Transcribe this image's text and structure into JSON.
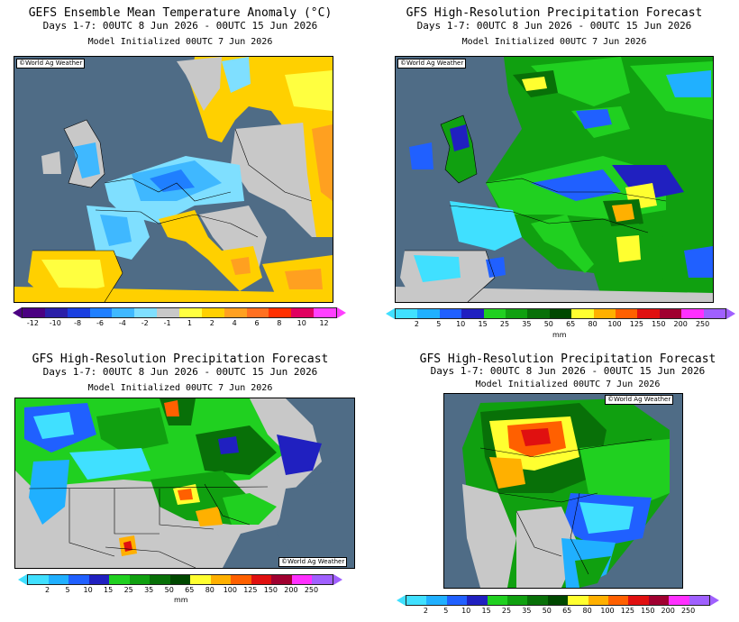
{
  "panels": [
    {
      "title": "GEFS Ensemble Mean Temperature Anomaly (°C)",
      "dates": "Days 1-7: 00UTC 8 Jun 2026 - 00UTC 15 Jun 2026",
      "init": "Model Initialized 00UTC 7 Jun 2026",
      "credit": "©World Ag Weather",
      "colorbar": {
        "colors": [
          "#4b0082",
          "#2a1fa8",
          "#1a3fe0",
          "#1f7fff",
          "#3fb8ff",
          "#7fdfff",
          "#c8c8c8",
          "#ffff40",
          "#ffd000",
          "#ffa020",
          "#ff7020",
          "#ff3000",
          "#e00060",
          "#ff40ff"
        ],
        "ticks": [
          "-12",
          "-10",
          "-8",
          "-6",
          "-4",
          "-2",
          "-1",
          "1",
          "2",
          "4",
          "6",
          "8",
          "10",
          "12"
        ],
        "unit": ""
      }
    },
    {
      "title": "GFS High-Resolution Precipitation Forecast",
      "dates": "Days 1-7: 00UTC 8 Jun 2026 - 00UTC 15 Jun 2026",
      "init": "Model Initialized 00UTC 7 Jun 2026",
      "credit": "©World Ag Weather",
      "colorbar": {
        "colors": [
          "#40e0ff",
          "#20b0ff",
          "#2060ff",
          "#2020c0",
          "#20d020",
          "#10a010",
          "#087008",
          "#004800",
          "#ffff30",
          "#ffb000",
          "#ff6000",
          "#e01010",
          "#a00030",
          "#ff30ff",
          "#a060ff"
        ],
        "ticks": [
          "2",
          "5",
          "10",
          "15",
          "25",
          "35",
          "50",
          "65",
          "80",
          "100",
          "125",
          "150",
          "200",
          "250"
        ],
        "unit": "mm"
      }
    },
    {
      "title": "GFS High-Resolution Precipitation Forecast",
      "dates": "Days 1-7: 00UTC 8 Jun 2026 - 00UTC 15 Jun 2026",
      "init": "Model Initialized 00UTC 7 Jun 2026",
      "credit": "©World Ag Weather",
      "colorbar": {
        "colors": [
          "#40e0ff",
          "#20b0ff",
          "#2060ff",
          "#2020c0",
          "#20d020",
          "#10a010",
          "#087008",
          "#004800",
          "#ffff30",
          "#ffb000",
          "#ff6000",
          "#e01010",
          "#a00030",
          "#ff30ff",
          "#a060ff"
        ],
        "ticks": [
          "2",
          "5",
          "10",
          "15",
          "25",
          "35",
          "50",
          "65",
          "80",
          "100",
          "125",
          "150",
          "200",
          "250"
        ],
        "unit": "mm"
      }
    },
    {
      "title": "GFS High-Resolution Precipitation Forecast",
      "dates": "Days 1-7: 00UTC 8 Jun 2026 - 00UTC 15 Jun 2026",
      "init": "Model Initialized 00UTC 7 Jun 2026",
      "credit": "©World Ag Weather",
      "colorbar": {
        "colors": [
          "#40e0ff",
          "#20b0ff",
          "#2060ff",
          "#2020c0",
          "#20d020",
          "#10a010",
          "#087008",
          "#004800",
          "#ffff30",
          "#ffb000",
          "#ff6000",
          "#e01010",
          "#a00030",
          "#ff30ff",
          "#a060ff"
        ],
        "ticks": [
          "2",
          "5",
          "10",
          "15",
          "25",
          "35",
          "50",
          "65",
          "80",
          "100",
          "125",
          "150",
          "200",
          "250"
        ],
        "unit": ""
      }
    }
  ],
  "colors": {
    "ocean": "#4f6c86",
    "land_gray": "#c8c8c8",
    "border": "#000000"
  }
}
